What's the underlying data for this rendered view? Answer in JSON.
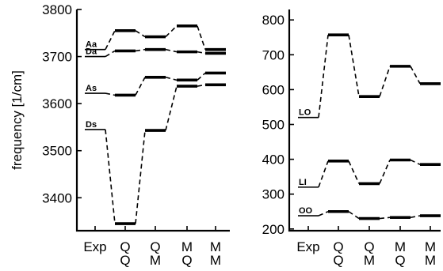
{
  "chart_data": [
    {
      "type": "line",
      "ylabel": "frequency [1/cm]",
      "ylim": [
        3330,
        3800
      ],
      "yticks": [
        3400,
        3500,
        3600,
        3700,
        3800
      ],
      "categories": [
        [
          "Exp",
          ""
        ],
        [
          "Q",
          "Q"
        ],
        [
          "Q",
          "M"
        ],
        [
          "M",
          "Q"
        ],
        [
          "M",
          "M"
        ]
      ],
      "series": [
        {
          "name": "Aa",
          "values": [
            3715,
            3755,
            3742,
            3765,
            3715
          ]
        },
        {
          "name": "Da",
          "values": [
            3700,
            3712,
            3715,
            3710,
            3707
          ]
        },
        {
          "name": "As",
          "values": [
            3622,
            3618,
            3656,
            3650,
            3665
          ]
        },
        {
          "name": "Ds",
          "values": [
            3545,
            3345,
            3543,
            3637,
            3640
          ]
        }
      ]
    },
    {
      "type": "line",
      "ylabel": "",
      "ylim": [
        195,
        830
      ],
      "yticks": [
        200,
        300,
        400,
        500,
        600,
        700,
        800
      ],
      "categories": [
        [
          "Exp",
          ""
        ],
        [
          "Q",
          "Q"
        ],
        [
          "Q",
          "M"
        ],
        [
          "M",
          "Q"
        ],
        [
          "M",
          "M"
        ]
      ],
      "series": [
        {
          "name": "LO",
          "values": [
            520,
            757,
            580,
            667,
            617
          ]
        },
        {
          "name": "LI",
          "values": [
            320,
            395,
            330,
            398,
            385
          ]
        },
        {
          "name": "OO",
          "values": [
            238,
            250,
            230,
            233,
            238
          ]
        }
      ]
    }
  ]
}
